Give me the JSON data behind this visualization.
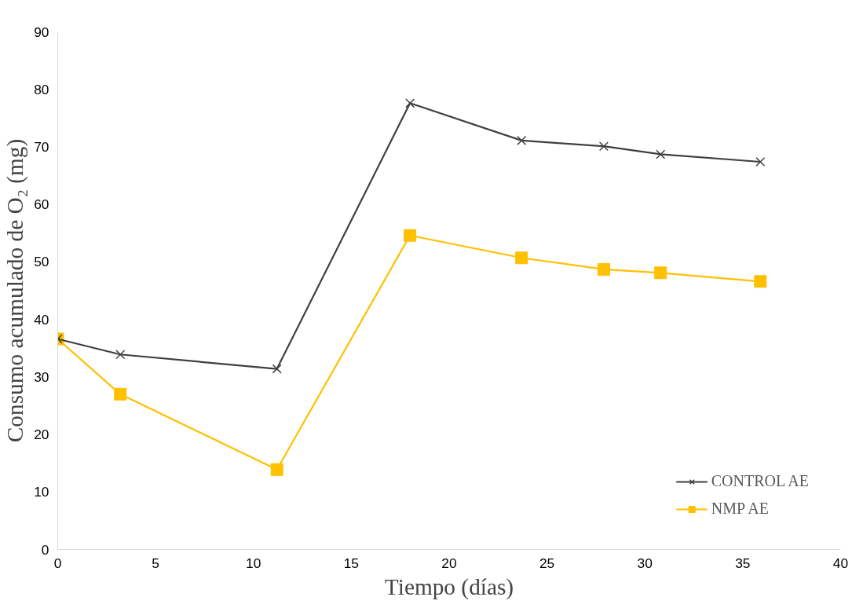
{
  "chart_data": {
    "type": "line",
    "xlabel": "Tiempo (días)",
    "ylabel": "Consumo acumulado de O₂ (mg)",
    "xlim": [
      0,
      40
    ],
    "xticks": [
      0,
      5,
      10,
      15,
      20,
      25,
      30,
      35,
      40
    ],
    "ylim": [
      0,
      90
    ],
    "yticks": [
      0,
      10,
      20,
      30,
      40,
      50,
      60,
      70,
      80,
      90
    ],
    "grid": false,
    "legend": "bottom right",
    "line_style": "solid",
    "series": [
      {
        "name": "CONTROL AE",
        "color": "#404040",
        "marker": "cross",
        "x": [
          0,
          3.2,
          11.2,
          18.0,
          23.7,
          27.9,
          30.8,
          35.9
        ],
        "values": [
          36.6,
          33.9,
          31.4,
          77.6,
          71.1,
          70.1,
          68.7,
          67.4
        ]
      },
      {
        "name": "NMP AE",
        "color": "#ffc000",
        "marker": "square",
        "x": [
          0,
          3.2,
          11.2,
          18.0,
          23.7,
          27.9,
          30.8,
          35.9
        ],
        "values": [
          36.6,
          27.0,
          13.9,
          54.6,
          50.7,
          48.7,
          48.1,
          46.6
        ]
      }
    ]
  }
}
